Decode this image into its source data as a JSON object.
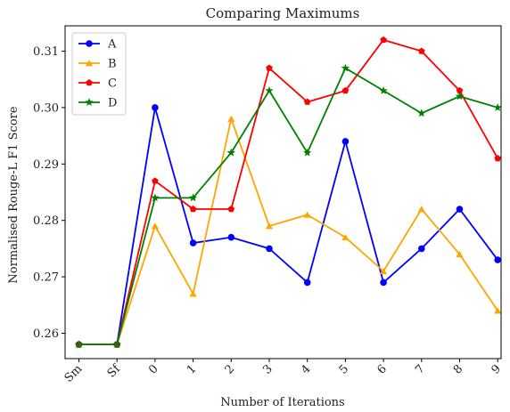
{
  "chart_data": {
    "type": "line",
    "title": "Comparing Maximums",
    "xlabel": "Number of Iterations",
    "ylabel": "Normalised Rouge-L F1 Score",
    "categories": [
      "Sm",
      "Sf",
      "0",
      "1",
      "2",
      "3",
      "4",
      "5",
      "6",
      "7",
      "8",
      "9"
    ],
    "ylim": [
      0.2555,
      0.3145
    ],
    "yticks": [
      0.26,
      0.27,
      0.28,
      0.29,
      0.3,
      0.31
    ],
    "ytick_labels": [
      "0.26",
      "0.27",
      "0.28",
      "0.29",
      "0.30",
      "0.31"
    ],
    "grid": false,
    "legend_position": "top-left",
    "series": [
      {
        "name": "A",
        "color": "#0000ff",
        "marker": "circle",
        "values": [
          0.258,
          0.258,
          0.3,
          0.276,
          0.277,
          0.275,
          0.269,
          0.294,
          0.269,
          0.275,
          0.282,
          0.273
        ]
      },
      {
        "name": "B",
        "color": "#ffa500",
        "marker": "triangle",
        "values": [
          0.258,
          0.258,
          0.279,
          0.267,
          0.298,
          0.279,
          0.281,
          0.277,
          0.271,
          0.282,
          0.274,
          0.264
        ]
      },
      {
        "name": "C",
        "color": "#ff0000",
        "marker": "pentagon",
        "values": [
          0.258,
          0.258,
          0.287,
          0.282,
          0.282,
          0.307,
          0.301,
          0.303,
          0.312,
          0.31,
          0.303,
          0.291
        ]
      },
      {
        "name": "D",
        "color": "#008000",
        "marker": "star",
        "values": [
          0.258,
          0.258,
          0.284,
          0.284,
          0.292,
          0.303,
          0.292,
          0.307,
          0.303,
          0.299,
          0.302,
          0.3
        ]
      }
    ]
  }
}
